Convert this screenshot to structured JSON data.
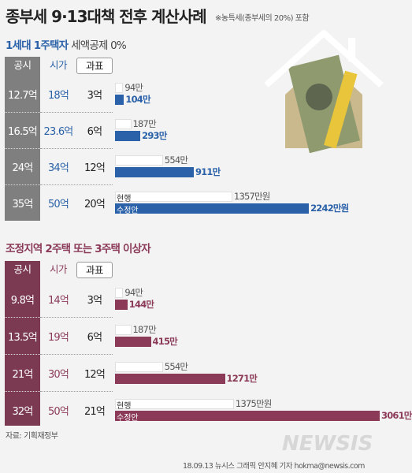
{
  "title": "종부세 9·13대책 전후 계산사례",
  "title_note": "※농특세(종부세의 20%) 포함",
  "colors": {
    "s1_accent": "#2a61a8",
    "s1_col": "#7f7f7f",
    "s2_accent": "#8b3a58",
    "s2_col": "#7b3a52",
    "current_bar": "#ffffff"
  },
  "chart_data": [
    {
      "type": "bar",
      "title": "1세대 1주택자",
      "subtitle": "세액공제 0%",
      "headers": [
        "공시",
        "시가",
        "과표"
      ],
      "rows": [
        {
          "gongsi": "12.7억",
          "siga": "18억",
          "gwapyo": "3억",
          "current": 94,
          "current_label": "94만",
          "proposed": 104,
          "proposed_label": "104만"
        },
        {
          "gongsi": "16.5억",
          "siga": "23.6억",
          "gwapyo": "6억",
          "current": 187,
          "current_label": "187만",
          "proposed": 293,
          "proposed_label": "293만"
        },
        {
          "gongsi": "24억",
          "siga": "34억",
          "gwapyo": "12억",
          "current": 554,
          "current_label": "554만",
          "proposed": 911,
          "proposed_label": "911만"
        },
        {
          "gongsi": "35억",
          "siga": "50억",
          "gwapyo": "20억",
          "current": 1357,
          "current_label": "1357만원",
          "proposed": 2242,
          "proposed_label": "2242만원",
          "current_tag": "현행",
          "proposed_tag": "수정안"
        }
      ]
    },
    {
      "type": "bar",
      "title": "조정지역 2주택 또는 3주택 이상자",
      "subtitle": "",
      "headers": [
        "공시",
        "시가",
        "과표"
      ],
      "rows": [
        {
          "gongsi": "9.8억",
          "siga": "14억",
          "gwapyo": "3억",
          "current": 94,
          "current_label": "94만",
          "proposed": 144,
          "proposed_label": "144만"
        },
        {
          "gongsi": "13.5억",
          "siga": "19억",
          "gwapyo": "6억",
          "current": 187,
          "current_label": "187만",
          "proposed": 415,
          "proposed_label": "415만"
        },
        {
          "gongsi": "21억",
          "siga": "30억",
          "gwapyo": "12억",
          "current": 554,
          "current_label": "554만",
          "proposed": 1271,
          "proposed_label": "1271만"
        },
        {
          "gongsi": "32억",
          "siga": "50억",
          "gwapyo": "21억",
          "current": 1375,
          "current_label": "1375만원",
          "proposed": 3061,
          "proposed_label": "3061만",
          "current_tag": "현행",
          "proposed_tag": "수정안"
        }
      ]
    }
  ],
  "footer": {
    "source": "자료: 기획재정부",
    "credit": "18.09.13  뉴시스 그래픽 안지혜 기자  hokma@newsis.com",
    "watermark": "NEWSIS"
  }
}
